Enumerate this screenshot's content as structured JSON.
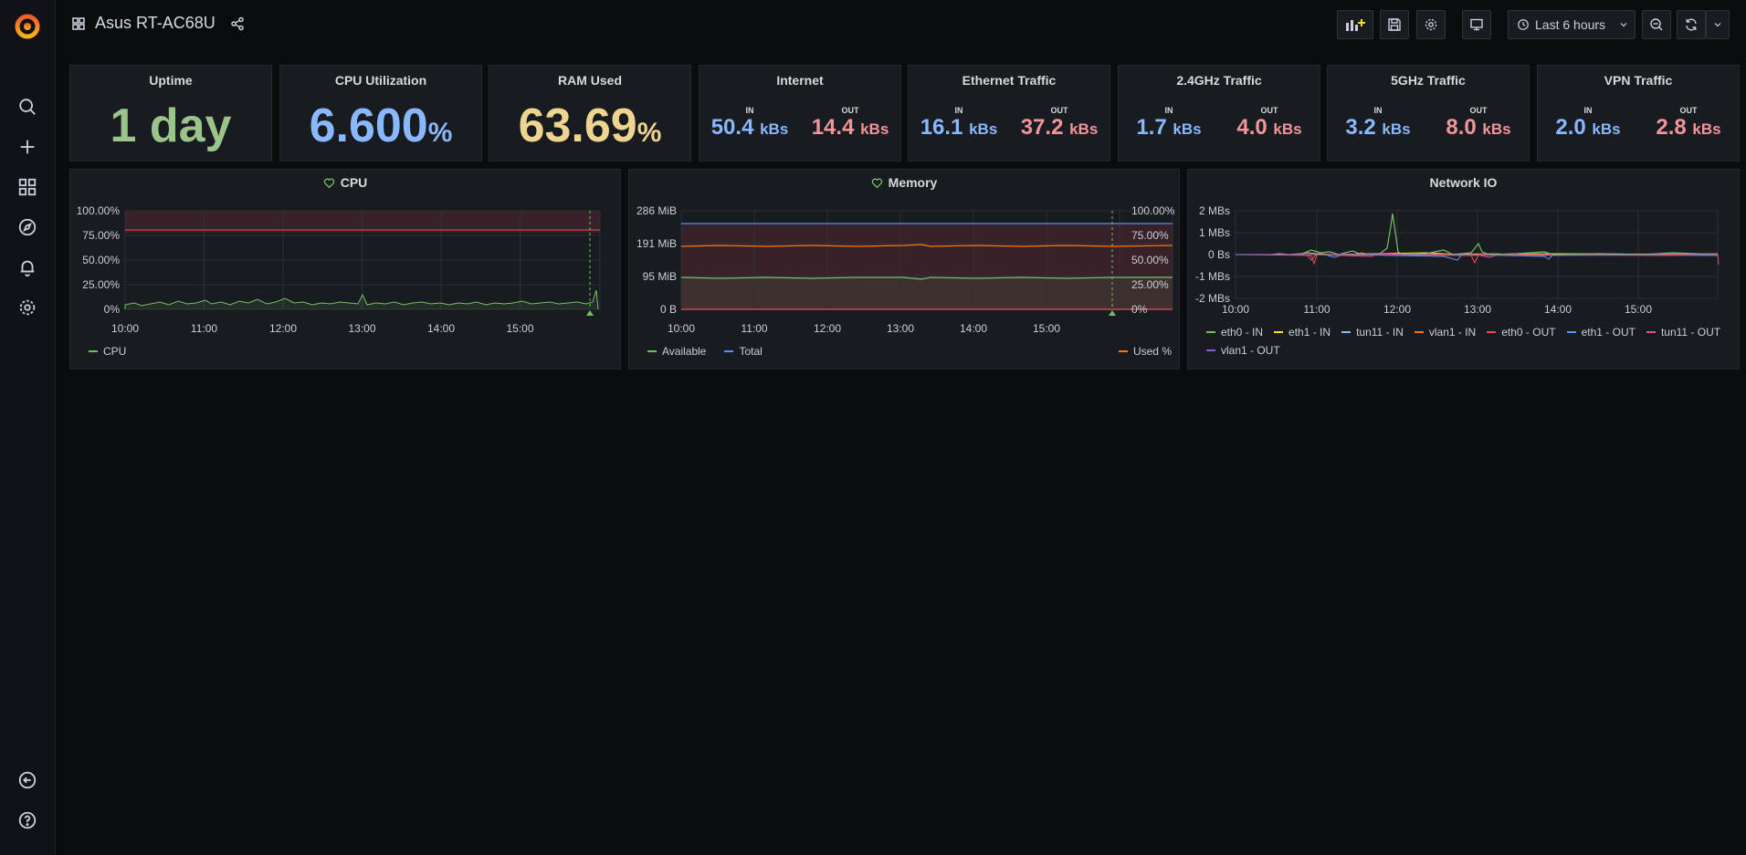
{
  "dashboard": {
    "title": "Asus RT-AC68U"
  },
  "toolbar": {
    "time_range": "Last 6 hours"
  },
  "stats": {
    "uptime": {
      "title": "Uptime",
      "value": "1 day"
    },
    "cpu": {
      "title": "CPU Utilization",
      "value": "6.600",
      "unit": "%"
    },
    "ram": {
      "title": "RAM Used",
      "value": "63.69",
      "unit": "%"
    }
  },
  "traffic": [
    {
      "title": "Internet",
      "in_label": "IN",
      "in_value": "50.4",
      "in_unit": "kBs",
      "out_label": "OUT",
      "out_value": "14.4",
      "out_unit": "kBs"
    },
    {
      "title": "Ethernet Traffic",
      "in_label": "IN",
      "in_value": "16.1",
      "in_unit": "kBs",
      "out_label": "OUT",
      "out_value": "37.2",
      "out_unit": "kBs"
    },
    {
      "title": "2.4GHz Traffic",
      "in_label": "IN",
      "in_value": "1.7",
      "in_unit": "kBs",
      "out_label": "OUT",
      "out_value": "4.0",
      "out_unit": "kBs"
    },
    {
      "title": "5GHz Traffic",
      "in_label": "IN",
      "in_value": "3.2",
      "in_unit": "kBs",
      "out_label": "OUT",
      "out_value": "8.0",
      "out_unit": "kBs"
    },
    {
      "title": "VPN Traffic",
      "in_label": "IN",
      "in_value": "2.0",
      "in_unit": "kBs",
      "out_label": "OUT",
      "out_value": "2.8",
      "out_unit": "kBs"
    }
  ],
  "graphs": {
    "cpu": {
      "title": "CPU",
      "y_ticks": [
        "100.00%",
        "75.00%",
        "50.00%",
        "25.00%",
        "0%"
      ],
      "x_ticks": [
        "10:00",
        "11:00",
        "12:00",
        "13:00",
        "14:00",
        "15:00"
      ],
      "legend": [
        "CPU"
      ]
    },
    "memory": {
      "title": "Memory",
      "y_ticks_left": [
        "286 MiB",
        "191 MiB",
        "95 MiB",
        "0 B"
      ],
      "y_ticks_right": [
        "100.00%",
        "75.00%",
        "50.00%",
        "25.00%",
        "0%"
      ],
      "x_ticks": [
        "10:00",
        "11:00",
        "12:00",
        "13:00",
        "14:00",
        "15:00"
      ],
      "legend_left": [
        "Available",
        "Total"
      ],
      "legend_right": [
        "Used %"
      ]
    },
    "network": {
      "title": "Network IO",
      "y_ticks": [
        "2 MBs",
        "1 MBs",
        "0 Bs",
        "-1 MBs",
        "-2 MBs"
      ],
      "x_ticks": [
        "10:00",
        "11:00",
        "12:00",
        "13:00",
        "14:00",
        "15:00"
      ],
      "legend": [
        "eth0 - IN",
        "eth1 - IN",
        "tun11 - IN",
        "vlan1 - IN",
        "eth0 - OUT",
        "eth1 - OUT",
        "tun11 - OUT",
        "vlan1 - OUT"
      ]
    }
  },
  "colors": {
    "green": "#73bf69",
    "blue": "#5794f2",
    "orange": "#ff780a",
    "red": "#f2495c",
    "yellow": "#fade2a",
    "slate": "#8ab8ff",
    "pink": "#e0527e",
    "purple": "#8f5bd7"
  },
  "icons": {
    "sidebar": [
      "grafana-logo-icon",
      "search-icon",
      "plus-icon",
      "dashboards-icon",
      "explore-compass-icon",
      "alerting-bell-icon",
      "configuration-gear-icon",
      "sign-out-icon",
      "help-icon"
    ]
  }
}
